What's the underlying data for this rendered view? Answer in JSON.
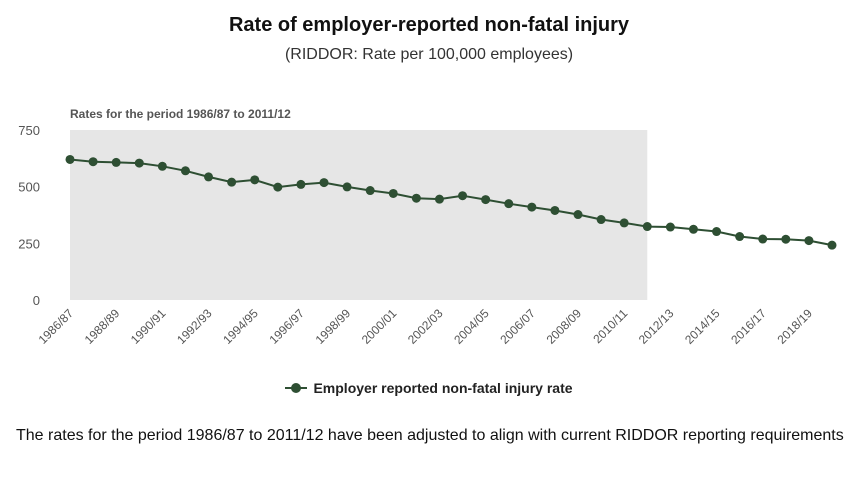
{
  "header": {
    "title": "Rate of employer-reported non-fatal injury",
    "subtitle": "(RIDDOR: Rate per 100,000 employees)"
  },
  "colors": {
    "series": "#2e4f33",
    "shaded_band": "#e6e6e6",
    "axis_text": "#555555"
  },
  "chart_data": {
    "type": "line",
    "title": "Rate of employer-reported non-fatal injury",
    "subtitle": "(RIDDOR: Rate per 100,000 employees)",
    "xlabel": "",
    "ylabel": "",
    "ylim": [
      0,
      750
    ],
    "y_ticks": [
      0,
      250,
      500,
      750
    ],
    "grid": false,
    "legend_position": "bottom-center",
    "x": [
      "1986/87",
      "1987/88",
      "1988/89",
      "1989/90",
      "1990/91",
      "1991/92",
      "1992/93",
      "1993/94",
      "1994/95",
      "1995/96",
      "1996/97",
      "1997/98",
      "1998/99",
      "1999/00",
      "2000/01",
      "2001/02",
      "2002/03",
      "2003/04",
      "2004/05",
      "2005/06",
      "2006/07",
      "2007/08",
      "2008/09",
      "2009/10",
      "2010/11",
      "2011/12",
      "2012/13",
      "2013/14",
      "2014/15",
      "2015/16",
      "2016/17",
      "2017/18",
      "2018/19",
      "2019/20"
    ],
    "x_tick_labels": [
      "1986/87",
      "1988/89",
      "1990/91",
      "1992/93",
      "1994/95",
      "1996/97",
      "1998/99",
      "2000/01",
      "2002/03",
      "2004/05",
      "2006/07",
      "2008/09",
      "2010/11",
      "2012/13",
      "2014/15",
      "2016/17",
      "2018/19"
    ],
    "series": [
      {
        "name": "Employer reported non-fatal injury rate",
        "values": [
          620,
          610,
          607,
          604,
          590,
          570,
          543,
          520,
          530,
          498,
          510,
          518,
          499,
          483,
          470,
          449,
          445,
          460,
          443,
          425,
          410,
          395,
          377,
          355,
          340,
          324,
          322,
          312,
          302,
          280,
          269,
          268,
          262,
          242
        ]
      }
    ],
    "annotations": [
      {
        "text": "Rates for the period 1986/87 to 2011/12",
        "from": "1986/87",
        "to": "2011/12",
        "kind": "shaded-band"
      }
    ]
  },
  "legend": {
    "label": "Employer reported non-fatal injury rate"
  },
  "footnote": "The rates for the period 1986/87 to 2011/12 have been adjusted to align with current RIDDOR reporting requirements"
}
